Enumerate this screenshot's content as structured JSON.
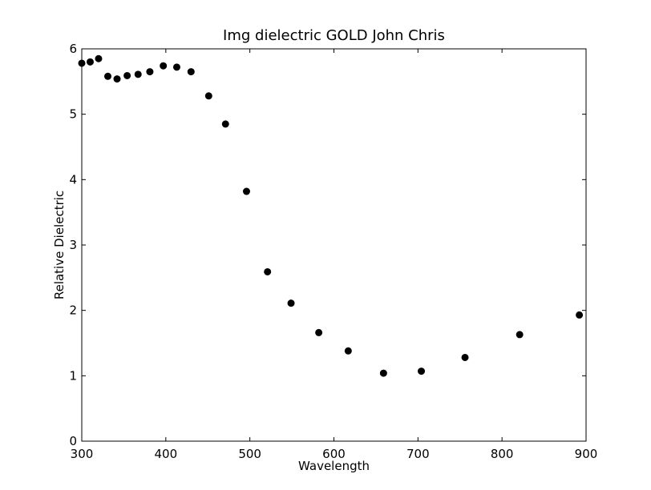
{
  "chart_data": {
    "type": "scatter",
    "title": "Img dielectric GOLD John Chris",
    "xlabel": "Wavelength",
    "ylabel": "Relative Dielectric",
    "xlim": [
      300,
      900
    ],
    "ylim": [
      0,
      6
    ],
    "xticks": [
      "300",
      "400",
      "500",
      "600",
      "700",
      "800",
      "900"
    ],
    "yticks": [
      "0",
      "1",
      "2",
      "3",
      "4",
      "5",
      "6"
    ],
    "grid": false,
    "series": [
      {
        "marker_color": "#000000",
        "points": [
          {
            "x": 300,
            "y": 5.78
          },
          {
            "x": 310,
            "y": 5.8
          },
          {
            "x": 320,
            "y": 5.85
          },
          {
            "x": 331,
            "y": 5.58
          },
          {
            "x": 342,
            "y": 5.54
          },
          {
            "x": 354,
            "y": 5.59
          },
          {
            "x": 367,
            "y": 5.61
          },
          {
            "x": 381,
            "y": 5.65
          },
          {
            "x": 397,
            "y": 5.74
          },
          {
            "x": 413,
            "y": 5.72
          },
          {
            "x": 430,
            "y": 5.65
          },
          {
            "x": 451,
            "y": 5.28
          },
          {
            "x": 471,
            "y": 4.85
          },
          {
            "x": 496,
            "y": 3.82
          },
          {
            "x": 521,
            "y": 2.59
          },
          {
            "x": 549,
            "y": 2.11
          },
          {
            "x": 582,
            "y": 1.66
          },
          {
            "x": 617,
            "y": 1.38
          },
          {
            "x": 659,
            "y": 1.04
          },
          {
            "x": 704,
            "y": 1.07
          },
          {
            "x": 756,
            "y": 1.28
          },
          {
            "x": 821,
            "y": 1.63
          },
          {
            "x": 892,
            "y": 1.93
          }
        ]
      }
    ]
  }
}
